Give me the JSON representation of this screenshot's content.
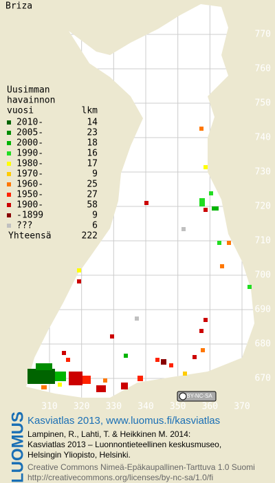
{
  "title": "Briza",
  "legend": {
    "heading": [
      "Uusimman",
      "havainnon"
    ],
    "year_label": "vuosi",
    "count_label": "lkm",
    "entries": [
      {
        "label": "2010-",
        "count": 14,
        "color": "#006400"
      },
      {
        "label": "2005-",
        "count": 23,
        "color": "#008c00"
      },
      {
        "label": "2000-",
        "count": 18,
        "color": "#00b400"
      },
      {
        "label": "1990-",
        "count": 16,
        "color": "#22dd22"
      },
      {
        "label": "1980-",
        "count": 17,
        "color": "#ffff00"
      },
      {
        "label": "1970-",
        "count": 9,
        "color": "#ffcc00"
      },
      {
        "label": "1960-",
        "count": 25,
        "color": "#ff7700"
      },
      {
        "label": "1950-",
        "count": 27,
        "color": "#ff2200"
      },
      {
        "label": "1900-",
        "count": 58,
        "color": "#cc0000"
      },
      {
        "label": "-1899",
        "count": 9,
        "color": "#880000"
      },
      {
        "label": "???",
        "count": 6,
        "color": "#c0c0c0"
      }
    ],
    "total_label": "Yhteensä",
    "total": 222
  },
  "grid": {
    "yticks": [
      770,
      760,
      750,
      740,
      730,
      720,
      710,
      700,
      690,
      680,
      670
    ],
    "xticks": [
      310,
      320,
      330,
      340,
      350,
      360,
      370
    ]
  },
  "license_badge": "BY-NC-SA",
  "footer": {
    "brand": "LUOMUS",
    "headline": "Kasviatlas 2013, www.luomus.fi/kasviatlas",
    "citation": [
      "Lampinen, R., Lahti, T. & Heikkinen M. 2014:",
      "Kasviatlas 2013 – Luonnontieteellinen keskusmuseo,",
      "Helsingin Yliopisto, Helsinki."
    ],
    "license": [
      "Creative Commons Nimeä-Epäkaupallinen-Tarttuva 1.0 Suomi",
      "http://creativecommons.org/licenses/by-nc-sa/1.0/fi"
    ]
  }
}
